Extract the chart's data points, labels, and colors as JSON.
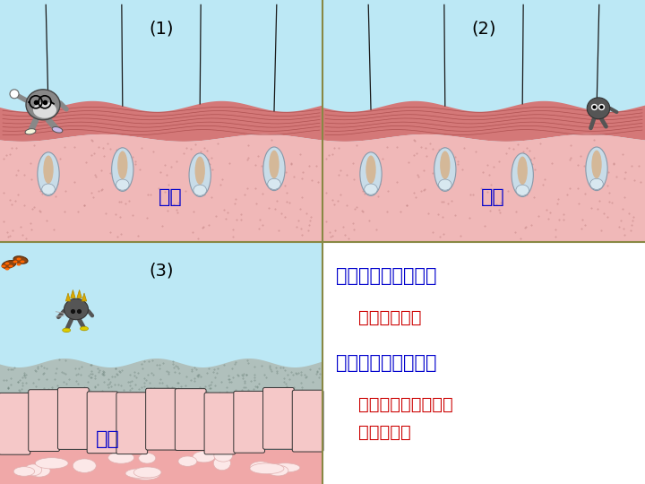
{
  "bg_light_blue": "#bce8f5",
  "skin_dark_pink": "#d47878",
  "skin_light_pink": "#f0b8b8",
  "skin_dots_color": "#c08080",
  "mucus_grey": "#a8bfb8",
  "mucus_cell_color": "#f0c0c0",
  "mucus_cell_border": "#222222",
  "mucus_tissue_pink": "#f0a8a8",
  "mucus_blob_color": "#fce8e8",
  "text_white_bg": "#ffffff",
  "divider": "#888844",
  "blue": "#0000cc",
  "red": "#cc0000",
  "label_1": "(1)",
  "label_2": "(2)",
  "label_3": "(3)",
  "label_pifu": "皮肤",
  "label_nianmo": "黏膜",
  "title1": "第一道防线的组成：",
  "text1": "皮肤和黏膜。",
  "title2": "第一道防线的功能：",
  "text2": "阻挡或杀死病原体，\n清扫异物。"
}
